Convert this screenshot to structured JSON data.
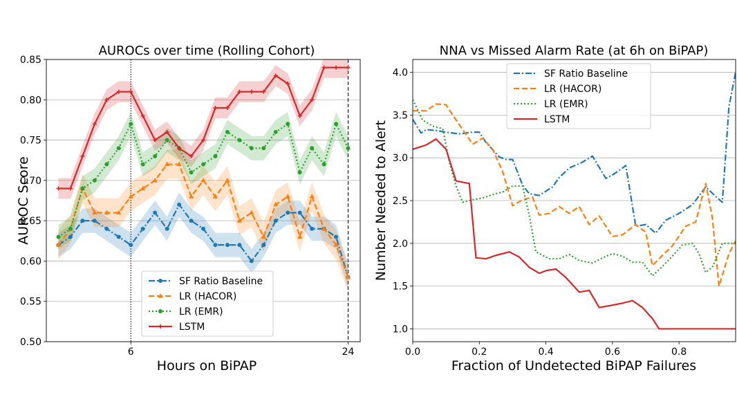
{
  "chart_data": [
    {
      "type": "line",
      "title": "AUROCs over time (Rolling Cohort)",
      "xlabel": "Hours on BiPAP",
      "ylabel": "AUROC Score",
      "xlim": [
        -1,
        25
      ],
      "ylim": [
        0.5,
        0.85
      ],
      "xticks": [
        6,
        24
      ],
      "yticks": [
        0.5,
        0.55,
        0.6,
        0.65,
        0.7,
        0.75,
        0.8,
        0.85
      ],
      "vlines": [
        {
          "x": 6,
          "style": "dotted"
        },
        {
          "x": 24,
          "style": "dashed"
        }
      ],
      "grid": "y",
      "legend_position": "lower-center",
      "x": [
        0,
        1,
        2,
        3,
        4,
        5,
        6,
        7,
        8,
        9,
        10,
        11,
        12,
        13,
        14,
        15,
        16,
        17,
        18,
        19,
        20,
        21,
        22,
        23,
        24
      ],
      "series": [
        {
          "name": "SF Ratio Baseline",
          "color": "#1f77b4",
          "style": "dashdot",
          "marker": "circle",
          "values": [
            0.62,
            0.63,
            0.65,
            0.65,
            0.64,
            0.63,
            0.62,
            0.64,
            0.66,
            0.64,
            0.67,
            0.65,
            0.64,
            0.62,
            0.62,
            0.62,
            0.6,
            0.62,
            0.65,
            0.66,
            0.66,
            0.64,
            0.64,
            0.63,
            0.58
          ],
          "band": 0.015
        },
        {
          "name": "LR (HACOR)",
          "color": "#ff7f0e",
          "style": "dashed",
          "marker": "triangle",
          "values": [
            0.62,
            0.64,
            0.69,
            0.66,
            0.66,
            0.66,
            0.68,
            0.69,
            0.7,
            0.72,
            0.72,
            0.68,
            0.7,
            0.68,
            0.7,
            0.65,
            0.66,
            0.63,
            0.67,
            0.68,
            0.63,
            0.68,
            0.64,
            0.62,
            0.58
          ],
          "band": 0.018
        },
        {
          "name": "LR (EMR)",
          "color": "#2ca02c",
          "style": "dotted",
          "marker": "circle",
          "values": [
            0.63,
            0.64,
            0.69,
            0.7,
            0.72,
            0.74,
            0.77,
            0.72,
            0.73,
            0.75,
            0.74,
            0.71,
            0.72,
            0.73,
            0.76,
            0.75,
            0.74,
            0.74,
            0.76,
            0.77,
            0.71,
            0.74,
            0.72,
            0.77,
            0.74
          ],
          "band": 0.015
        },
        {
          "name": "LSTM",
          "color": "#d62728",
          "style": "solid",
          "marker": "plus",
          "values": [
            0.69,
            0.69,
            0.73,
            0.77,
            0.8,
            0.81,
            0.81,
            0.78,
            0.75,
            0.76,
            0.74,
            0.73,
            0.75,
            0.79,
            0.79,
            0.81,
            0.81,
            0.81,
            0.83,
            0.82,
            0.78,
            0.8,
            0.84,
            0.84,
            0.84
          ],
          "band": 0.013
        }
      ]
    },
    {
      "type": "line",
      "title": "NNA vs Missed Alarm Rate (at 6h on BiPAP)",
      "xlabel": "Fraction of Undetected BiPAP Failures",
      "ylabel": "Number Needed to Alert",
      "xlim": [
        0,
        0.97
      ],
      "ylim": [
        0.85,
        4.15
      ],
      "xticks": [
        0.0,
        0.2,
        0.4,
        0.6,
        0.8
      ],
      "yticks": [
        1.0,
        1.5,
        2.0,
        2.5,
        3.0,
        3.5,
        4.0
      ],
      "grid": "y",
      "legend_position": "upper-left",
      "series": [
        {
          "name": "SF Ratio Baseline",
          "color": "#1f77b4",
          "style": "dashdot",
          "points": [
            [
              0.0,
              3.45
            ],
            [
              0.025,
              3.29
            ],
            [
              0.04,
              3.33
            ],
            [
              0.07,
              3.32
            ],
            [
              0.1,
              3.3
            ],
            [
              0.14,
              3.28
            ],
            [
              0.18,
              3.3
            ],
            [
              0.2,
              3.3
            ],
            [
              0.22,
              3.18
            ],
            [
              0.26,
              3.01
            ],
            [
              0.28,
              2.98
            ],
            [
              0.3,
              2.98
            ],
            [
              0.33,
              2.68
            ],
            [
              0.35,
              2.58
            ],
            [
              0.38,
              2.56
            ],
            [
              0.42,
              2.66
            ],
            [
              0.44,
              2.77
            ],
            [
              0.47,
              2.88
            ],
            [
              0.51,
              2.95
            ],
            [
              0.54,
              3.02
            ],
            [
              0.58,
              2.76
            ],
            [
              0.6,
              2.8
            ],
            [
              0.63,
              2.88
            ],
            [
              0.64,
              2.91
            ],
            [
              0.67,
              2.2
            ],
            [
              0.7,
              2.22
            ],
            [
              0.73,
              2.12
            ],
            [
              0.76,
              2.27
            ],
            [
              0.8,
              2.35
            ],
            [
              0.84,
              2.45
            ],
            [
              0.88,
              2.66
            ],
            [
              0.91,
              2.55
            ],
            [
              0.93,
              2.48
            ],
            [
              0.95,
              3.6
            ],
            [
              0.97,
              4.0
            ]
          ]
        },
        {
          "name": "LR (HACOR)",
          "color": "#ff7f0e",
          "style": "dashed",
          "points": [
            [
              0.0,
              3.55
            ],
            [
              0.04,
              3.55
            ],
            [
              0.07,
              3.63
            ],
            [
              0.1,
              3.62
            ],
            [
              0.12,
              3.5
            ],
            [
              0.15,
              3.33
            ],
            [
              0.18,
              3.16
            ],
            [
              0.21,
              3.23
            ],
            [
              0.24,
              3.1
            ],
            [
              0.27,
              2.84
            ],
            [
              0.3,
              2.44
            ],
            [
              0.33,
              2.51
            ],
            [
              0.36,
              2.54
            ],
            [
              0.38,
              2.33
            ],
            [
              0.41,
              2.35
            ],
            [
              0.44,
              2.43
            ],
            [
              0.47,
              2.35
            ],
            [
              0.5,
              2.43
            ],
            [
              0.53,
              2.22
            ],
            [
              0.56,
              2.32
            ],
            [
              0.6,
              2.08
            ],
            [
              0.63,
              2.1
            ],
            [
              0.67,
              2.22
            ],
            [
              0.7,
              2.13
            ],
            [
              0.72,
              1.74
            ],
            [
              0.75,
              1.86
            ],
            [
              0.78,
              1.97
            ],
            [
              0.82,
              2.2
            ],
            [
              0.85,
              2.25
            ],
            [
              0.88,
              2.7
            ],
            [
              0.9,
              2.3
            ],
            [
              0.92,
              1.5
            ],
            [
              0.95,
              1.88
            ],
            [
              0.97,
              2.03
            ]
          ]
        },
        {
          "name": "LR (EMR)",
          "color": "#2ca02c",
          "style": "dotted",
          "points": [
            [
              0.0,
              3.68
            ],
            [
              0.03,
              3.44
            ],
            [
              0.06,
              3.37
            ],
            [
              0.09,
              3.34
            ],
            [
              0.11,
              2.95
            ],
            [
              0.13,
              2.67
            ],
            [
              0.15,
              2.48
            ],
            [
              0.18,
              2.51
            ],
            [
              0.21,
              2.53
            ],
            [
              0.24,
              2.57
            ],
            [
              0.27,
              2.6
            ],
            [
              0.3,
              2.67
            ],
            [
              0.33,
              2.67
            ],
            [
              0.35,
              2.33
            ],
            [
              0.37,
              1.9
            ],
            [
              0.41,
              1.82
            ],
            [
              0.44,
              1.82
            ],
            [
              0.47,
              1.87
            ],
            [
              0.5,
              1.8
            ],
            [
              0.54,
              1.77
            ],
            [
              0.57,
              1.83
            ],
            [
              0.6,
              1.88
            ],
            [
              0.63,
              1.85
            ],
            [
              0.66,
              1.78
            ],
            [
              0.69,
              1.78
            ],
            [
              0.72,
              1.62
            ],
            [
              0.75,
              1.73
            ],
            [
              0.78,
              1.85
            ],
            [
              0.81,
              1.98
            ],
            [
              0.84,
              2.0
            ],
            [
              0.86,
              1.88
            ],
            [
              0.88,
              1.66
            ],
            [
              0.9,
              1.72
            ],
            [
              0.93,
              2.0
            ],
            [
              0.97,
              2.0
            ]
          ]
        },
        {
          "name": "LSTM",
          "color": "#d62728",
          "style": "solid",
          "points": [
            [
              0.0,
              3.1
            ],
            [
              0.04,
              3.15
            ],
            [
              0.07,
              3.22
            ],
            [
              0.1,
              3.1
            ],
            [
              0.13,
              2.73
            ],
            [
              0.17,
              2.7
            ],
            [
              0.19,
              1.83
            ],
            [
              0.22,
              1.82
            ],
            [
              0.25,
              1.86
            ],
            [
              0.29,
              1.9
            ],
            [
              0.32,
              1.84
            ],
            [
              0.35,
              1.72
            ],
            [
              0.38,
              1.65
            ],
            [
              0.4,
              1.68
            ],
            [
              0.43,
              1.7
            ],
            [
              0.46,
              1.6
            ],
            [
              0.5,
              1.43
            ],
            [
              0.53,
              1.45
            ],
            [
              0.56,
              1.25
            ],
            [
              0.59,
              1.27
            ],
            [
              0.63,
              1.3
            ],
            [
              0.66,
              1.33
            ],
            [
              0.69,
              1.25
            ],
            [
              0.72,
              1.12
            ],
            [
              0.74,
              1.0
            ],
            [
              0.97,
              1.0
            ]
          ]
        }
      ]
    }
  ]
}
